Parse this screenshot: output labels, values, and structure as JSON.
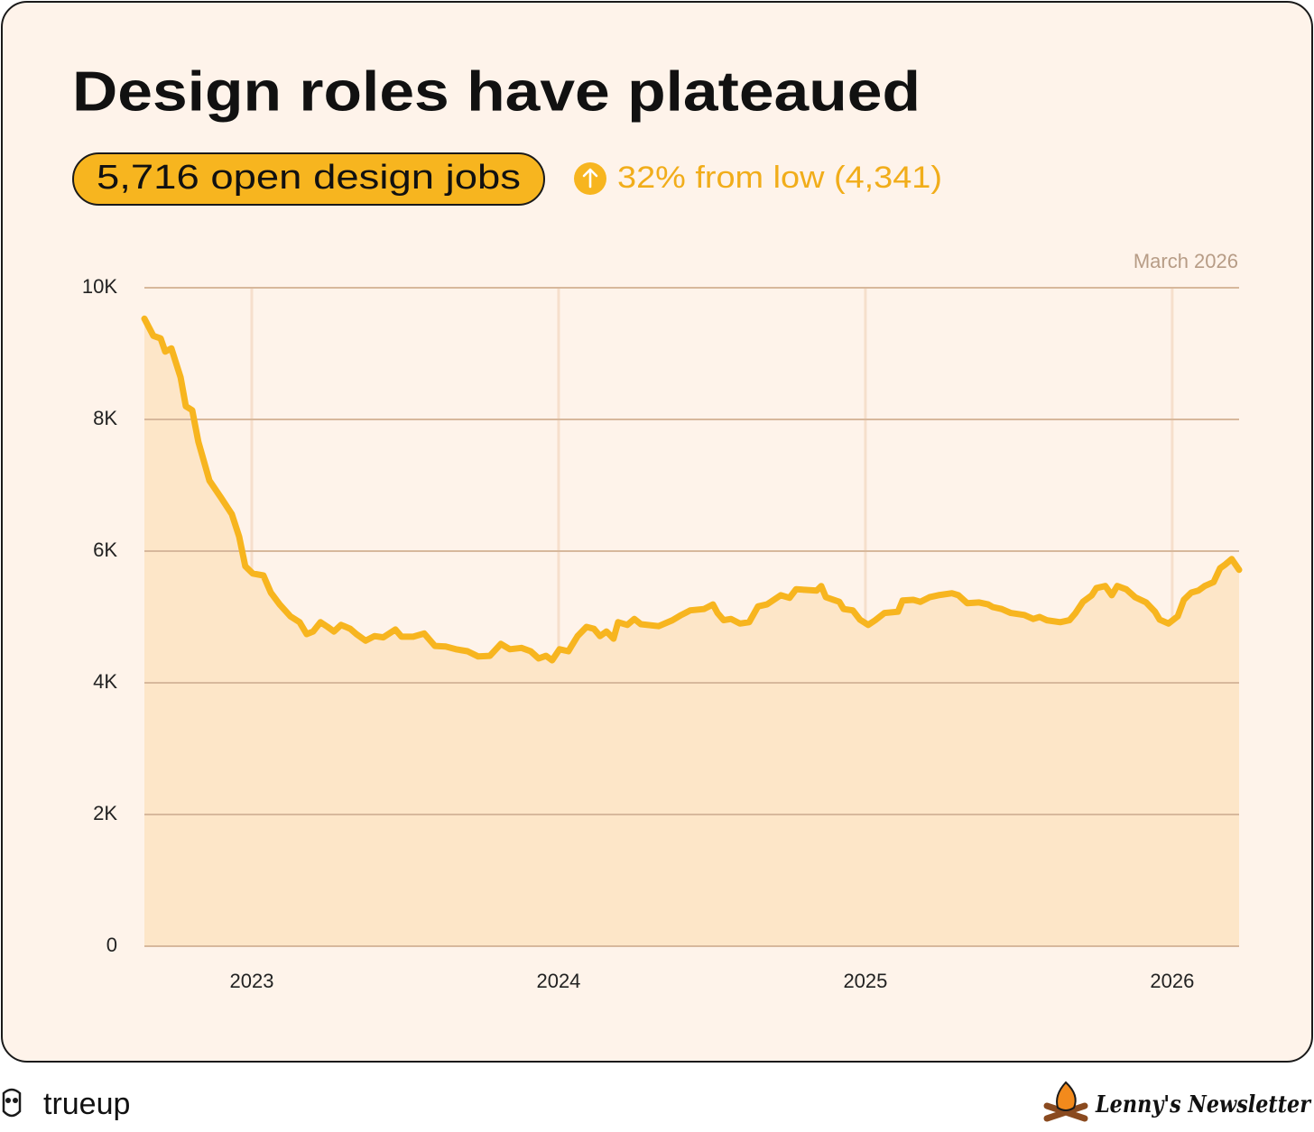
{
  "chart_data": {
    "type": "area",
    "title": "Design roles have plateaued",
    "headline": "5,716 open design jobs",
    "change": "32% from low (4,341)",
    "date_label": "March 2026",
    "color": "#f7b51f",
    "fill_color": "#fde6c8",
    "grid": true,
    "xlim": [
      2022.65,
      2026.218
    ],
    "xticks": [
      2023,
      2024,
      2025,
      2026
    ],
    "ylim": [
      0,
      10000
    ],
    "yticks": [
      0,
      {
        "value": 2000,
        "label": "2K"
      },
      {
        "value": 4000,
        "label": "4K"
      },
      {
        "value": 6000,
        "label": "6K"
      },
      {
        "value": 8000,
        "label": "8K"
      },
      {
        "value": 10000,
        "label": "10K"
      }
    ],
    "x": [
      2022.65,
      2022.679,
      2022.703,
      2022.718,
      2022.738,
      2022.768,
      2022.785,
      2022.806,
      2022.826,
      2022.862,
      2022.9,
      2022.935,
      2022.959,
      2022.979,
      2023.003,
      2023.038,
      2023.062,
      2023.091,
      2023.126,
      2023.156,
      2023.179,
      2023.2,
      2023.224,
      2023.247,
      2023.268,
      2023.291,
      2023.321,
      2023.341,
      2023.371,
      2023.4,
      2023.429,
      2023.468,
      2023.488,
      2023.526,
      2023.562,
      2023.597,
      2023.632,
      2023.665,
      2023.703,
      2023.738,
      2023.776,
      2023.812,
      2023.841,
      2023.879,
      2023.909,
      2023.935,
      2023.959,
      2023.979,
      2024.003,
      2024.032,
      2024.062,
      2024.091,
      2024.115,
      2024.135,
      2024.156,
      2024.179,
      2024.194,
      2024.224,
      2024.247,
      2024.268,
      2024.326,
      2024.371,
      2024.4,
      2024.429,
      2024.474,
      2024.503,
      2024.518,
      2024.538,
      2024.562,
      2024.591,
      2024.621,
      2024.65,
      2024.679,
      2024.724,
      2024.753,
      2024.774,
      2024.812,
      2024.841,
      2024.856,
      2024.871,
      2024.915,
      2024.929,
      2024.959,
      2024.982,
      2025.009,
      2025.032,
      2025.062,
      2025.106,
      2025.121,
      2025.156,
      2025.179,
      2025.209,
      2025.238,
      2025.282,
      2025.303,
      2025.332,
      2025.371,
      2025.4,
      2025.415,
      2025.444,
      2025.474,
      2025.518,
      2025.547,
      2025.568,
      2025.591,
      2025.635,
      2025.665,
      2025.685,
      2025.709,
      2025.738,
      2025.753,
      2025.782,
      2025.803,
      2025.821,
      2025.85,
      2025.879,
      2025.915,
      2025.944,
      2025.959,
      2025.988,
      2026.018,
      2026.038,
      2026.062,
      2026.085,
      2026.106,
      2026.135,
      2026.156,
      2026.174,
      2026.194,
      2026.218
    ],
    "values": [
      9530,
      9270,
      9230,
      9030,
      9080,
      8640,
      8200,
      8140,
      7660,
      7070,
      6810,
      6560,
      6220,
      5770,
      5660,
      5630,
      5370,
      5190,
      5010,
      4920,
      4740,
      4780,
      4920,
      4850,
      4780,
      4880,
      4820,
      4740,
      4640,
      4710,
      4690,
      4810,
      4700,
      4700,
      4750,
      4560,
      4550,
      4510,
      4480,
      4400,
      4410,
      4590,
      4510,
      4530,
      4480,
      4370,
      4410,
      4341,
      4510,
      4480,
      4710,
      4850,
      4820,
      4710,
      4780,
      4670,
      4920,
      4880,
      4970,
      4890,
      4860,
      4950,
      5030,
      5100,
      5120,
      5190,
      5060,
      4950,
      4970,
      4900,
      4920,
      5160,
      5190,
      5330,
      5290,
      5420,
      5410,
      5400,
      5470,
      5300,
      5230,
      5120,
      5100,
      4960,
      4880,
      4950,
      5060,
      5080,
      5250,
      5260,
      5230,
      5300,
      5330,
      5360,
      5330,
      5210,
      5220,
      5190,
      5150,
      5120,
      5060,
      5030,
      4970,
      5000,
      4950,
      4920,
      4950,
      5060,
      5230,
      5330,
      5440,
      5470,
      5330,
      5470,
      5420,
      5300,
      5220,
      5080,
      4960,
      4900,
      5010,
      5260,
      5370,
      5400,
      5470,
      5530,
      5740,
      5800,
      5880,
      5716
    ]
  },
  "footer": {
    "left_brand": "trueup",
    "right_brand": "Lenny's Newsletter"
  }
}
